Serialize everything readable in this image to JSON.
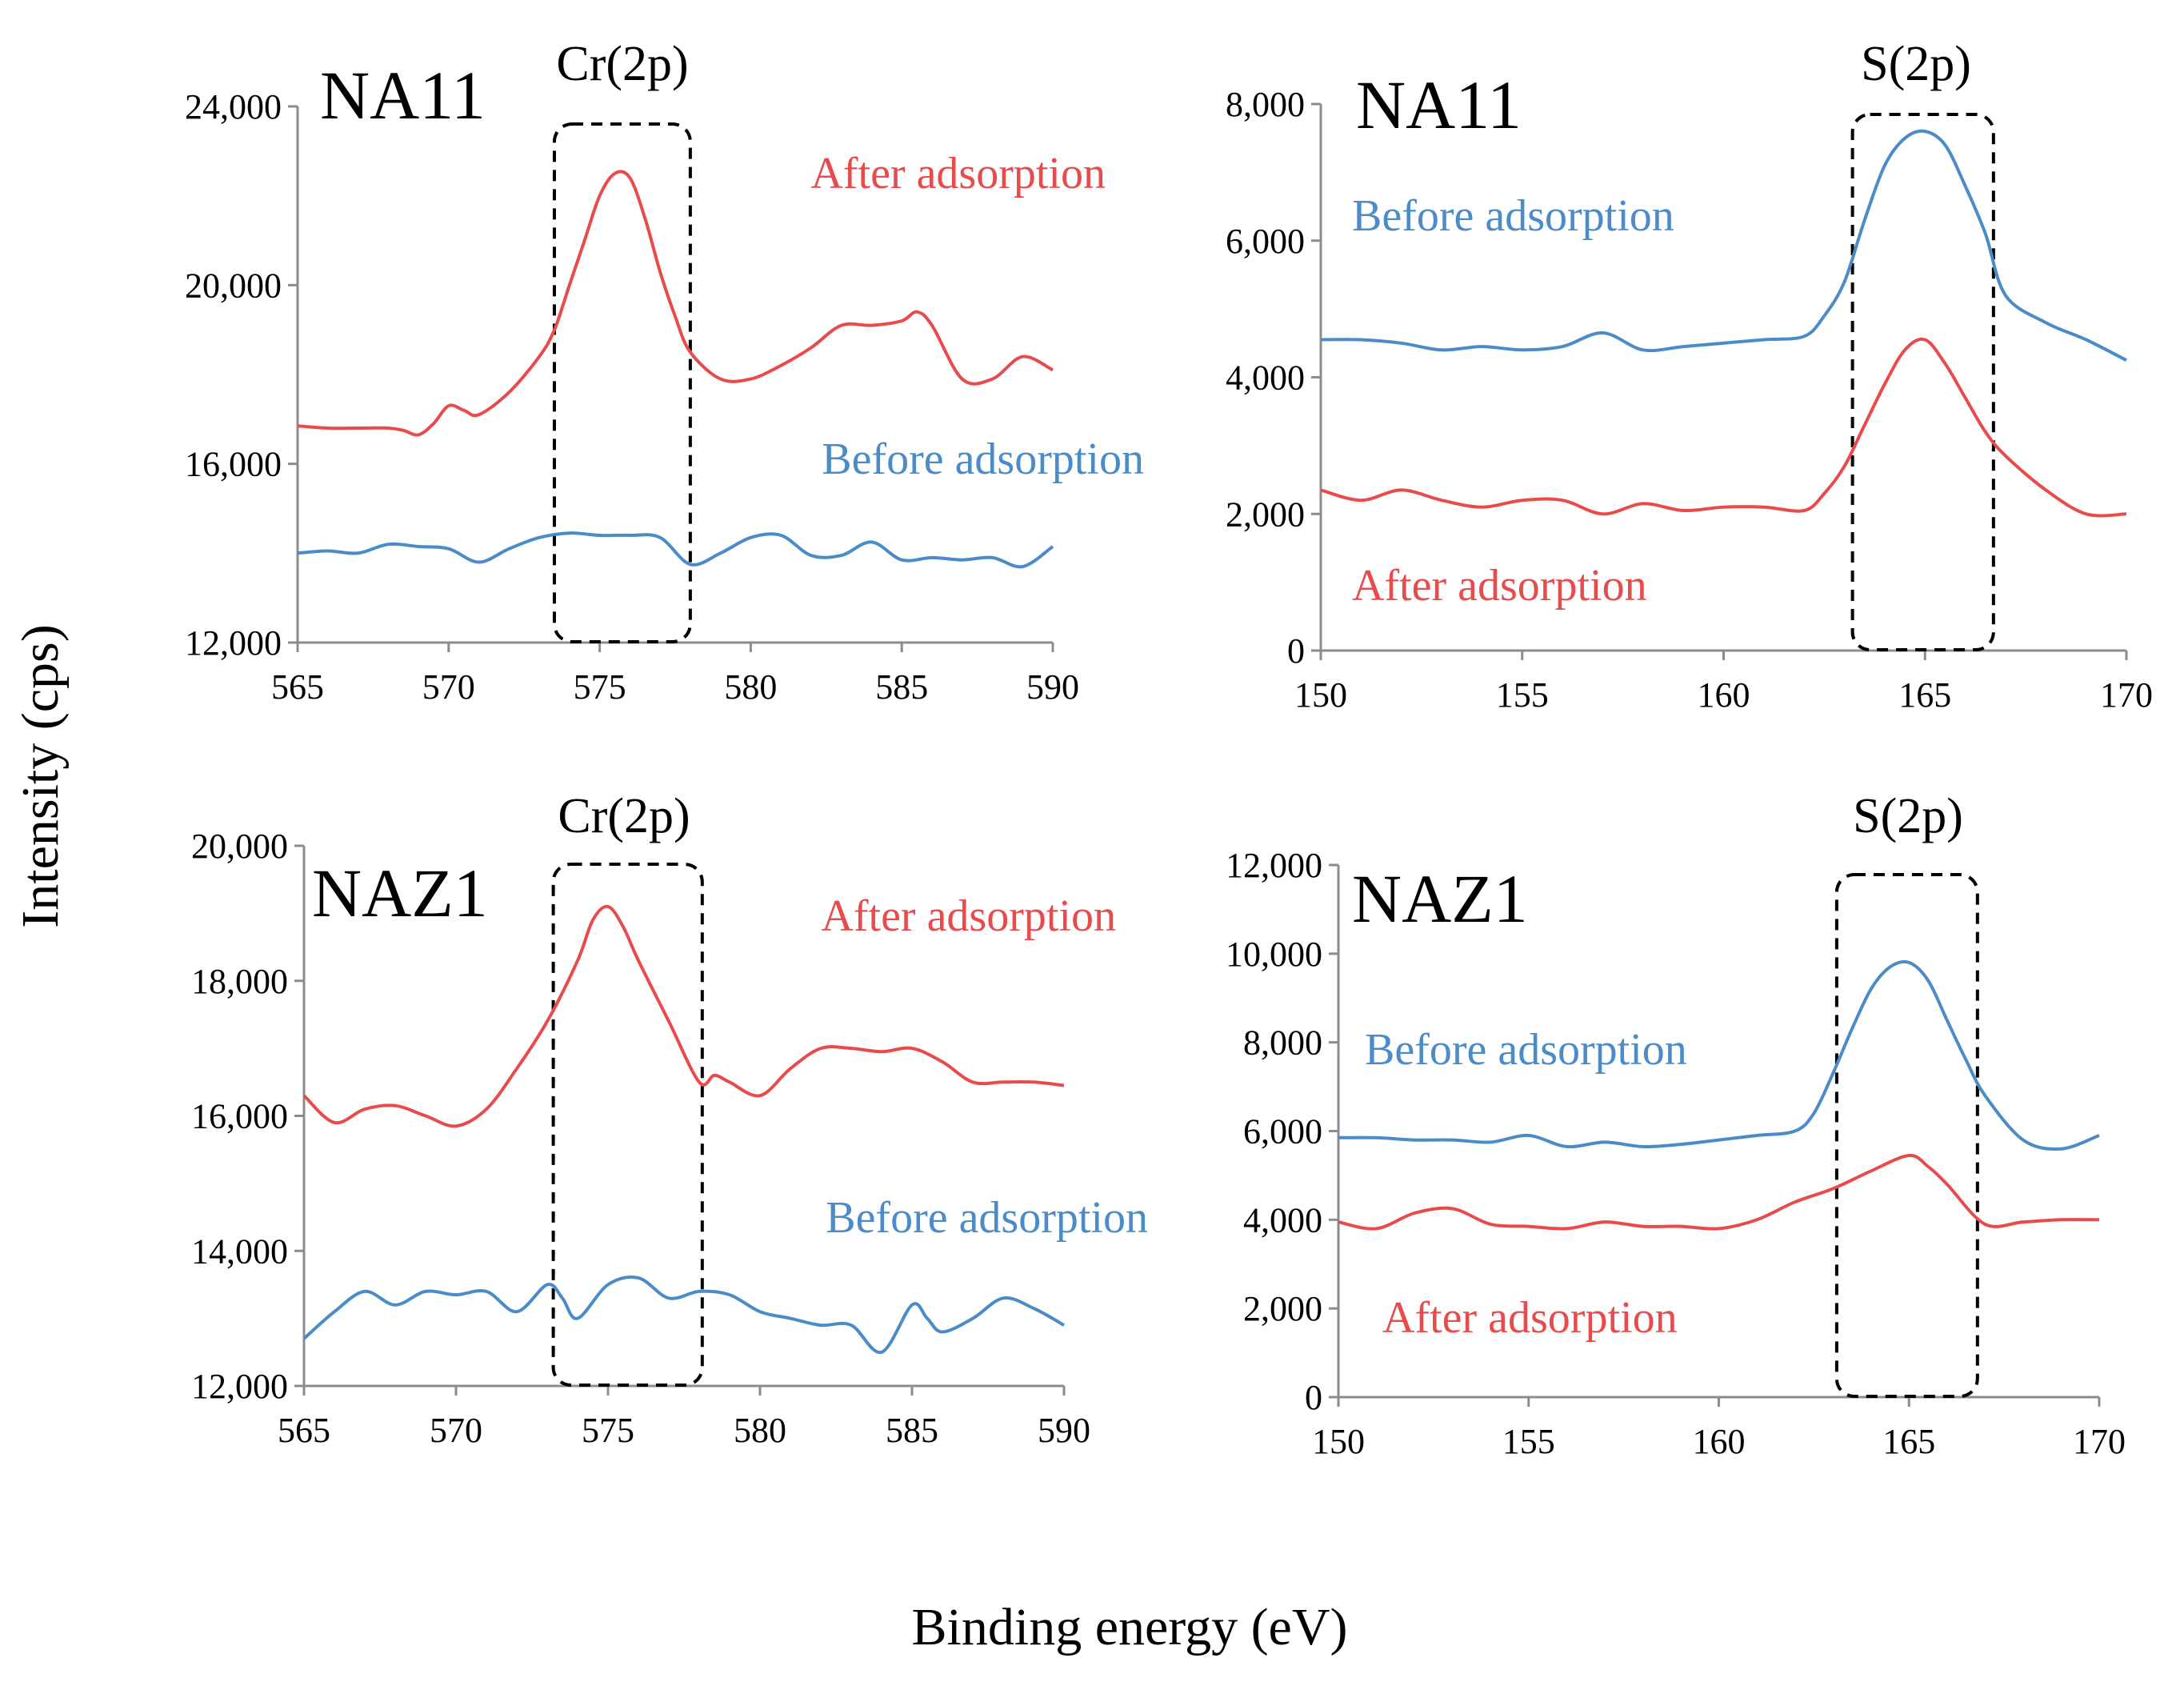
{
  "figure": {
    "ylabel": "Intensity (cps)",
    "xlabel": "Binding energy (eV)",
    "colors": {
      "after": "#E84B4B",
      "before": "#4A8BC8",
      "axis": "#8C8C8C",
      "box": "#000000"
    }
  },
  "chart_data": [
    {
      "type": "line",
      "sample": "NA11",
      "peak_label": "Cr(2p)",
      "xlim": [
        565,
        590
      ],
      "ylim": [
        12000,
        24000
      ],
      "xticks": [
        565,
        570,
        575,
        580,
        585,
        590
      ],
      "xtick_labels": [
        "565",
        "570",
        "575",
        "580",
        "585",
        "590"
      ],
      "yticks": [
        12000,
        16000,
        20000,
        24000
      ],
      "ytick_labels": [
        "12,000",
        "16,000",
        "20,000",
        "24,000"
      ],
      "highlight_range": [
        573.5,
        578
      ],
      "series": [
        {
          "name": "After adsorption",
          "color": "#E84B4B",
          "label_side": "above",
          "x": [
            565,
            566,
            567,
            568,
            568.5,
            569,
            569.5,
            570,
            570.5,
            571,
            572,
            573,
            573.5,
            574,
            574.5,
            575,
            575.5,
            576,
            576.5,
            577,
            577.5,
            578,
            579,
            580,
            581,
            582,
            583,
            584,
            585,
            585.5,
            586,
            587,
            588,
            589,
            590
          ],
          "y": [
            16850,
            16800,
            16800,
            16800,
            16750,
            16650,
            16900,
            17300,
            17200,
            17100,
            17600,
            18400,
            19000,
            20000,
            21000,
            22000,
            22500,
            22400,
            21500,
            20300,
            19300,
            18500,
            17900,
            17900,
            18200,
            18600,
            19100,
            19100,
            19200,
            19400,
            19100,
            17900,
            17900,
            18400,
            18100
          ]
        },
        {
          "name": "Before adsorption",
          "color": "#4A8BC8",
          "label_side": "above",
          "x": [
            565,
            566,
            567,
            568,
            569,
            570,
            571,
            572,
            573,
            574,
            575,
            576,
            577,
            578,
            579,
            580,
            581,
            582,
            583,
            584,
            585,
            586,
            587,
            588,
            589,
            590
          ],
          "y": [
            14000,
            14050,
            14000,
            14200,
            14150,
            14100,
            13800,
            14100,
            14350,
            14450,
            14400,
            14400,
            14350,
            13750,
            14000,
            14350,
            14400,
            13950,
            13950,
            14250,
            13850,
            13900,
            13850,
            13900,
            13700,
            14150
          ]
        }
      ]
    },
    {
      "type": "line",
      "sample": "NA11",
      "peak_label": "S(2p)",
      "xlim": [
        150,
        170
      ],
      "ylim": [
        0,
        8000
      ],
      "xticks": [
        150,
        155,
        160,
        165,
        170
      ],
      "xtick_labels": [
        "150",
        "155",
        "160",
        "165",
        "170"
      ],
      "yticks": [
        0,
        2000,
        4000,
        6000,
        8000
      ],
      "ytick_labels": [
        "0",
        "2,000",
        "4,000",
        "6,000",
        "8,000"
      ],
      "highlight_range": [
        163.2,
        166.7
      ],
      "series": [
        {
          "name": "Before adsorption",
          "color": "#4A8BC8",
          "label_side": "above",
          "x": [
            150,
            151,
            152,
            153,
            154,
            155,
            156,
            157,
            158,
            159,
            160,
            161,
            162,
            162.5,
            163,
            163.5,
            164,
            164.5,
            165,
            165.5,
            166,
            166.5,
            167,
            168,
            169,
            170
          ],
          "y": [
            4550,
            4550,
            4500,
            4400,
            4450,
            4400,
            4450,
            4650,
            4400,
            4450,
            4500,
            4550,
            4600,
            4900,
            5400,
            6300,
            7100,
            7500,
            7600,
            7400,
            6800,
            6100,
            5200,
            4800,
            4550,
            4250
          ]
        },
        {
          "name": "After adsorption",
          "color": "#E84B4B",
          "label_side": "below",
          "x": [
            150,
            151,
            152,
            153,
            154,
            155,
            156,
            157,
            158,
            159,
            160,
            161,
            162,
            162.5,
            163,
            163.5,
            164,
            164.5,
            165,
            165.5,
            166,
            166.5,
            167,
            168,
            169,
            170
          ],
          "y": [
            2350,
            2200,
            2350,
            2200,
            2100,
            2200,
            2200,
            2000,
            2150,
            2050,
            2100,
            2100,
            2050,
            2300,
            2700,
            3300,
            3900,
            4400,
            4550,
            4200,
            3700,
            3200,
            2850,
            2350,
            2000,
            2000
          ]
        }
      ]
    },
    {
      "type": "line",
      "sample": "NAZ1",
      "peak_label": "Cr(2p)",
      "xlim": [
        565,
        590
      ],
      "ylim": [
        12000,
        20000
      ],
      "xticks": [
        565,
        570,
        575,
        580,
        585,
        590
      ],
      "xtick_labels": [
        "565",
        "570",
        "575",
        "580",
        "585",
        "590"
      ],
      "yticks": [
        12000,
        14000,
        16000,
        18000,
        20000
      ],
      "ytick_labels": [
        "12,000",
        "14,000",
        "16,000",
        "18,000",
        "20,000"
      ],
      "highlight_range": [
        573.2,
        578.1
      ],
      "series": [
        {
          "name": "After adsorption",
          "color": "#E84B4B",
          "label_side": "above",
          "x": [
            565,
            566,
            567,
            568,
            569,
            570,
            571,
            572,
            573,
            574,
            574.5,
            575,
            575.5,
            576,
            577,
            578,
            578.5,
            579,
            580,
            581,
            582,
            583,
            584,
            585,
            586,
            587,
            588,
            589,
            590
          ],
          "y": [
            16300,
            15900,
            16100,
            16150,
            16000,
            15850,
            16100,
            16700,
            17400,
            18300,
            18900,
            19100,
            18800,
            18300,
            17400,
            16500,
            16600,
            16500,
            16300,
            16700,
            17000,
            17000,
            16950,
            17000,
            16800,
            16500,
            16500,
            16500,
            16450
          ]
        },
        {
          "name": "Before adsorption",
          "color": "#4A8BC8",
          "label_side": "below",
          "x": [
            565,
            566,
            567,
            568,
            569,
            570,
            571,
            572,
            573,
            573.5,
            574,
            575,
            576,
            577,
            578,
            579,
            580,
            581,
            582,
            583,
            584,
            585,
            585.5,
            586,
            587,
            588,
            589,
            590
          ],
          "y": [
            12700,
            13100,
            13400,
            13200,
            13400,
            13350,
            13400,
            13100,
            13500,
            13300,
            13000,
            13500,
            13600,
            13300,
            13400,
            13350,
            13100,
            13000,
            12900,
            12900,
            12500,
            13200,
            13000,
            12800,
            13000,
            13300,
            13150,
            12900
          ]
        }
      ]
    },
    {
      "type": "line",
      "sample": "NAZ1",
      "peak_label": "S(2p)",
      "xlim": [
        150,
        170
      ],
      "ylim": [
        0,
        12000
      ],
      "xticks": [
        150,
        155,
        160,
        165,
        170
      ],
      "xtick_labels": [
        "150",
        "155",
        "160",
        "165",
        "170"
      ],
      "yticks": [
        0,
        2000,
        4000,
        6000,
        8000,
        10000,
        12000
      ],
      "ytick_labels": [
        "0",
        "2,000",
        "4,000",
        "6,000",
        "8,000",
        "10,000",
        "12,000"
      ],
      "highlight_range": [
        163.1,
        166.8
      ],
      "series": [
        {
          "name": "Before adsorption",
          "color": "#4A8BC8",
          "label_side": "above",
          "x": [
            150,
            151,
            152,
            153,
            154,
            155,
            156,
            157,
            158,
            159,
            160,
            161,
            162,
            162.5,
            163,
            163.5,
            164,
            164.5,
            165,
            165.5,
            166,
            166.5,
            167,
            168,
            169,
            170
          ],
          "y": [
            5850,
            5850,
            5800,
            5800,
            5750,
            5900,
            5650,
            5750,
            5650,
            5700,
            5800,
            5900,
            6000,
            6400,
            7300,
            8300,
            9200,
            9700,
            9800,
            9400,
            8500,
            7600,
            6800,
            5800,
            5600,
            5900
          ]
        },
        {
          "name": "After adsorption",
          "color": "#E84B4B",
          "label_side": "below",
          "x": [
            150,
            151,
            152,
            153,
            154,
            155,
            156,
            157,
            158,
            159,
            160,
            161,
            162,
            163,
            164,
            165,
            165.5,
            166,
            167,
            168,
            169,
            170
          ],
          "y": [
            3950,
            3800,
            4150,
            4250,
            3900,
            3850,
            3800,
            3950,
            3850,
            3850,
            3800,
            4000,
            4400,
            4700,
            5100,
            5450,
            5200,
            4800,
            3900,
            3950,
            4000,
            4000
          ]
        }
      ]
    }
  ]
}
